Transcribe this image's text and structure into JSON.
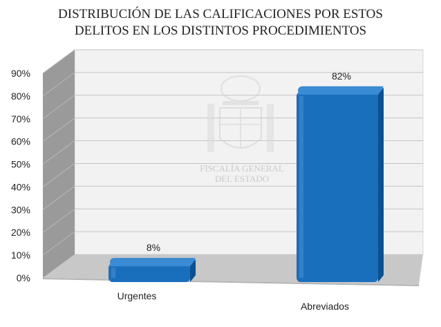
{
  "chart_data": {
    "type": "bar",
    "title_lines": [
      "DISTRIBUCIÓN DE LAS CALIFICACIONES POR ESTOS",
      "DELITOS EN  LOS DISTINTOS PROCEDIMIENTOS"
    ],
    "categories": [
      "Urgentes",
      "Abreviados"
    ],
    "values": [
      8,
      82
    ],
    "data_labels": [
      "8%",
      "82%"
    ],
    "ylim": [
      0,
      90
    ],
    "yticks": [
      0,
      10,
      20,
      30,
      40,
      50,
      60,
      70,
      80,
      90
    ],
    "ytick_labels": [
      "0%",
      "10%",
      "20%",
      "30%",
      "40%",
      "50%",
      "60%",
      "70%",
      "80%",
      "90%"
    ],
    "grid": true,
    "legend": "none",
    "three_d": true,
    "colors": {
      "bar": "#1a6fbd",
      "bar_top": "#3a8ad4",
      "bar_side": "#0f4f8c",
      "wall": "#f2f2f2",
      "floor": "#c8c8c8",
      "left_wall": "#9a9a9a",
      "grid": "#c4c4c4"
    }
  },
  "watermark": {
    "line1": "FISCALÍA GENERAL",
    "line2": "DEL ESTADO",
    "emblem_icon": "coat-of-arms-icon"
  }
}
